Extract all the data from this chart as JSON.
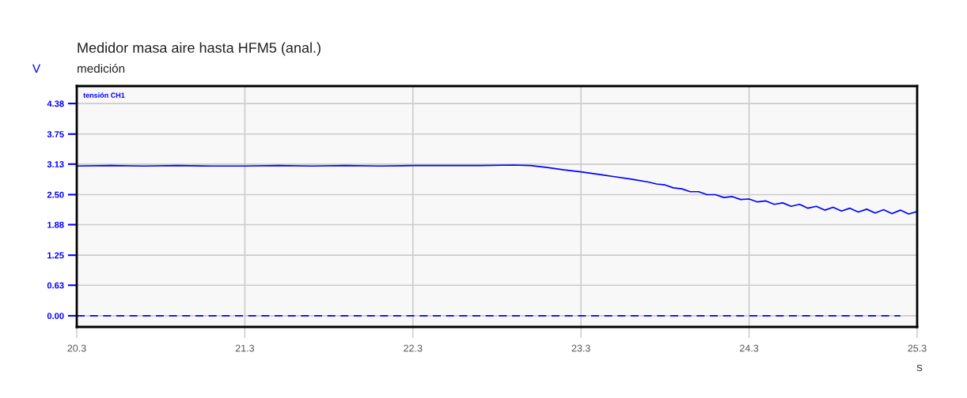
{
  "chart_data": {
    "type": "line",
    "title": "Medidor masa aire hasta HFM5 (anal.)",
    "subtitle": "medición",
    "ylabel": "V",
    "xlabel": "s",
    "xlim": [
      20.3,
      25.3
    ],
    "xticks": [
      20.3,
      21.3,
      22.3,
      23.3,
      24.3,
      25.3
    ],
    "ylim": [
      -0.23,
      4.74
    ],
    "yticks": [
      {
        "value": 0,
        "label": "0.00"
      },
      0.63,
      1.25,
      1.88,
      {
        "value": 2.5,
        "label": "2.50"
      },
      3.13,
      3.75,
      4.38
    ],
    "grid": true,
    "legend": "top left",
    "series": [
      {
        "name": "tensión CH1",
        "color": "#0000ff",
        "line_style": "solid",
        "x": [
          20.3,
          20.5,
          20.7,
          20.9,
          21.1,
          21.3,
          21.5,
          21.7,
          21.9,
          22.1,
          22.3,
          22.5,
          22.7,
          22.9,
          23.0,
          23.1,
          23.2,
          23.3,
          23.4,
          23.5,
          23.6,
          23.7,
          23.75,
          23.8,
          23.85,
          23.9,
          23.95,
          24.0,
          24.05,
          24.1,
          24.15,
          24.2,
          24.25,
          24.3,
          24.35,
          24.4,
          24.45,
          24.5,
          24.55,
          24.6,
          24.65,
          24.7,
          24.75,
          24.8,
          24.85,
          24.9,
          24.95,
          25.0,
          25.05,
          25.1,
          25.15,
          25.2,
          25.25,
          25.3
        ],
        "values": [
          3.09,
          3.1,
          3.09,
          3.1,
          3.09,
          3.09,
          3.1,
          3.09,
          3.1,
          3.09,
          3.1,
          3.1,
          3.1,
          3.11,
          3.1,
          3.06,
          3.01,
          2.97,
          2.92,
          2.87,
          2.82,
          2.76,
          2.72,
          2.7,
          2.64,
          2.62,
          2.56,
          2.56,
          2.5,
          2.5,
          2.44,
          2.46,
          2.4,
          2.41,
          2.35,
          2.37,
          2.3,
          2.33,
          2.26,
          2.3,
          2.22,
          2.26,
          2.18,
          2.24,
          2.16,
          2.22,
          2.14,
          2.2,
          2.12,
          2.19,
          2.11,
          2.18,
          2.1,
          2.15
        ]
      },
      {
        "color": "#0000ff",
        "line_style": "dashed",
        "x": [
          20.3,
          25.2
        ],
        "values": [
          0.0,
          0.0
        ]
      }
    ]
  }
}
